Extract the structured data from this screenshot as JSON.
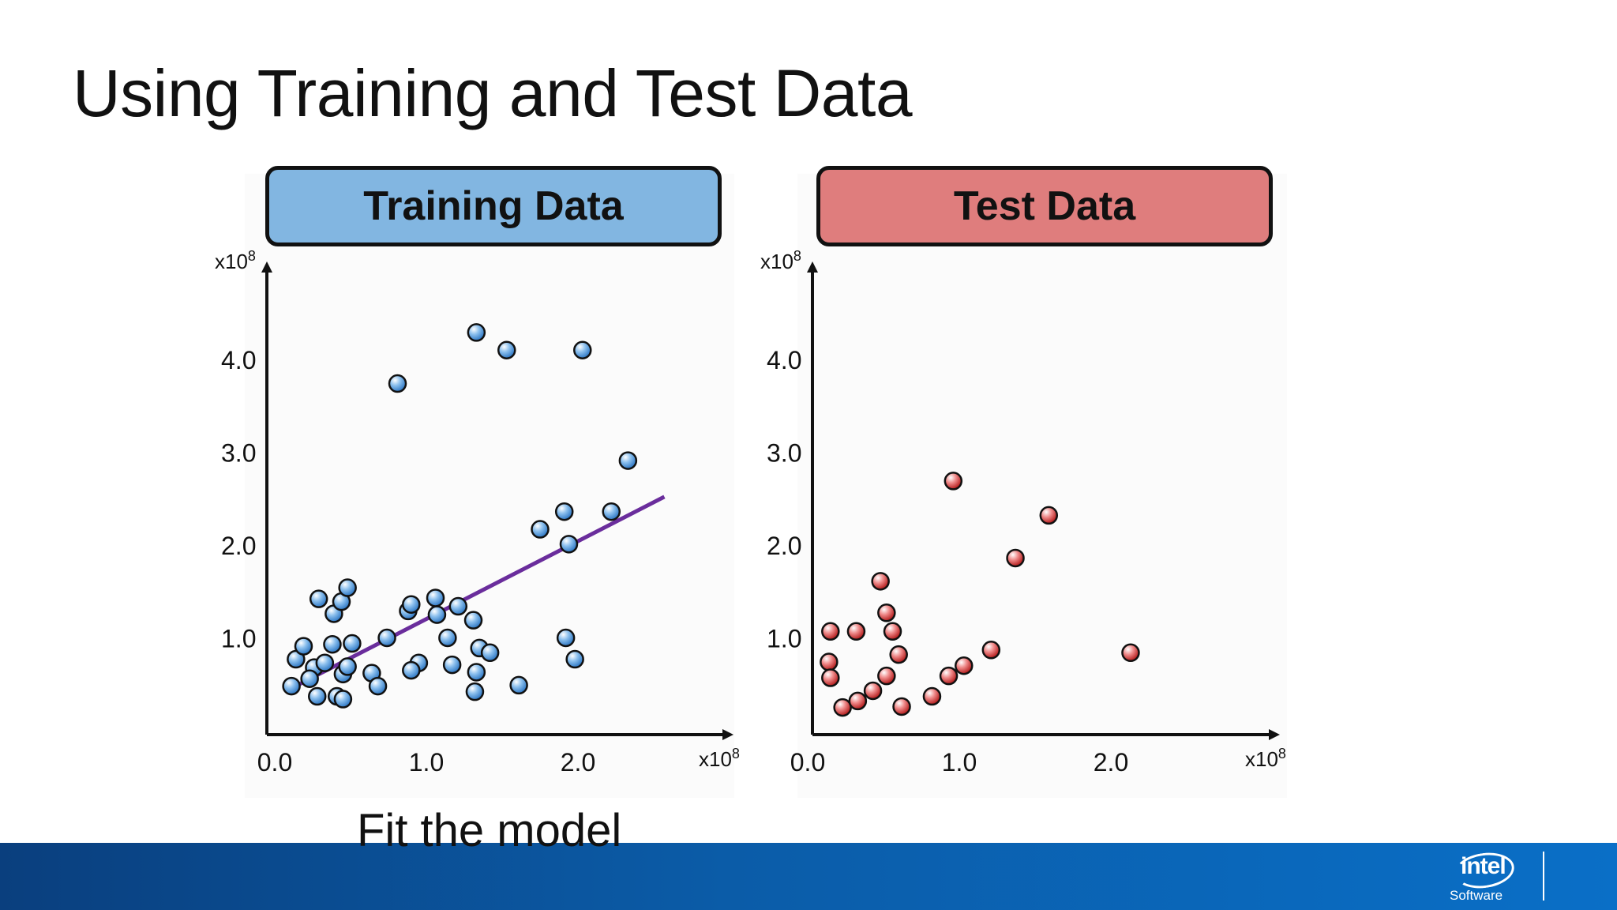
{
  "slide": {
    "title": "Using Training and Test Data",
    "caption": "Fit the model"
  },
  "footer": {
    "logo_text": "intel",
    "logo_subtext": "Software"
  },
  "colors": {
    "training_header": "#82b6e1",
    "test_header": "#df7d7d",
    "training_point": "#4a90d9",
    "test_point": "#c82828",
    "fit_line": "#6a2d9c",
    "footer_blue": "#0b5ca8"
  },
  "chart_data": [
    {
      "type": "scatter",
      "title": "Training Data",
      "xlabel": "",
      "ylabel": "",
      "x_multiplier": "x10",
      "y_multiplier": "x10",
      "multiplier_exponent": "8",
      "x_ticks": [
        "0.0",
        "1.0",
        "2.0"
      ],
      "y_ticks": [
        "1.0",
        "2.0",
        "3.0",
        "4.0"
      ],
      "xlim": [
        -0.08,
        3.0
      ],
      "ylim": [
        -0.4,
        5.0
      ],
      "grid": false,
      "points": [
        [
          0.14,
          0.77
        ],
        [
          0.11,
          0.48
        ],
        [
          0.26,
          0.68
        ],
        [
          0.33,
          0.73
        ],
        [
          0.19,
          0.91
        ],
        [
          0.23,
          0.56
        ],
        [
          0.28,
          0.37
        ],
        [
          0.41,
          0.37
        ],
        [
          0.45,
          0.34
        ],
        [
          0.38,
          0.93
        ],
        [
          0.45,
          0.61
        ],
        [
          0.48,
          0.69
        ],
        [
          0.51,
          0.94
        ],
        [
          0.64,
          0.62
        ],
        [
          0.68,
          0.48
        ],
        [
          0.74,
          1.0
        ],
        [
          0.29,
          1.42
        ],
        [
          0.39,
          1.26
        ],
        [
          0.44,
          1.39
        ],
        [
          0.48,
          1.54
        ],
        [
          0.88,
          1.29
        ],
        [
          0.9,
          1.36
        ],
        [
          1.06,
          1.43
        ],
        [
          1.07,
          1.25
        ],
        [
          1.14,
          1.0
        ],
        [
          1.21,
          1.34
        ],
        [
          1.31,
          1.19
        ],
        [
          1.35,
          0.89
        ],
        [
          1.42,
          0.84
        ],
        [
          1.33,
          0.63
        ],
        [
          1.17,
          0.71
        ],
        [
          0.95,
          0.73
        ],
        [
          0.9,
          0.65
        ],
        [
          1.32,
          0.42
        ],
        [
          1.61,
          0.49
        ],
        [
          1.92,
          1.0
        ],
        [
          1.98,
          0.77
        ],
        [
          1.75,
          2.17
        ],
        [
          1.91,
          2.36
        ],
        [
          1.94,
          2.01
        ],
        [
          2.22,
          2.36
        ],
        [
          2.33,
          2.91
        ],
        [
          0.81,
          3.74
        ],
        [
          1.33,
          4.29
        ],
        [
          1.53,
          4.1
        ],
        [
          2.03,
          4.1
        ]
      ],
      "fit_line": {
        "x": [
          0.09,
          2.57
        ],
        "y": [
          0.44,
          2.52
        ]
      }
    },
    {
      "type": "scatter",
      "title": "Test Data",
      "xlabel": "",
      "ylabel": "",
      "x_multiplier": "x10",
      "y_multiplier": "x10",
      "multiplier_exponent": "8",
      "x_ticks": [
        "0.0",
        "1.0",
        "2.0"
      ],
      "y_ticks": [
        "1.0",
        "2.0",
        "3.0",
        "4.0"
      ],
      "xlim": [
        -0.08,
        3.0
      ],
      "ylim": [
        -0.4,
        5.0
      ],
      "grid": false,
      "points": [
        [
          0.15,
          1.07
        ],
        [
          0.14,
          0.74
        ],
        [
          0.15,
          0.57
        ],
        [
          0.23,
          0.25
        ],
        [
          0.33,
          0.32
        ],
        [
          0.32,
          1.07
        ],
        [
          0.43,
          0.43
        ],
        [
          0.48,
          1.61
        ],
        [
          0.52,
          1.27
        ],
        [
          0.56,
          1.07
        ],
        [
          0.6,
          0.82
        ],
        [
          0.52,
          0.59
        ],
        [
          0.62,
          0.26
        ],
        [
          0.82,
          0.37
        ],
        [
          0.93,
          0.59
        ],
        [
          0.96,
          2.69
        ],
        [
          1.03,
          0.7
        ],
        [
          1.21,
          0.87
        ],
        [
          1.37,
          1.86
        ],
        [
          1.59,
          2.32
        ],
        [
          2.13,
          0.84
        ]
      ]
    }
  ]
}
